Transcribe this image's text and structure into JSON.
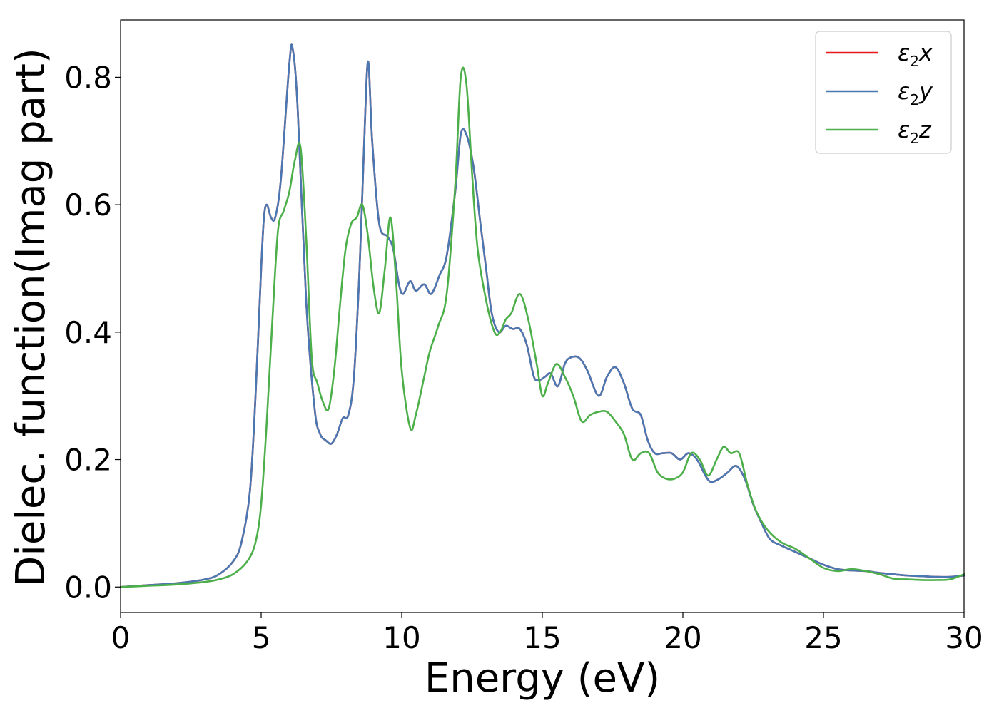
{
  "chart_data": {
    "type": "line",
    "xlabel": "Energy (eV)",
    "ylabel": "Dielec. function(Imag part)",
    "xlim": [
      0,
      30
    ],
    "ylim": [
      -0.04,
      0.89
    ],
    "xticks": [
      0,
      5,
      10,
      15,
      20,
      25,
      30
    ],
    "xtick_labels": [
      "0",
      "5",
      "10",
      "15",
      "20",
      "25",
      "30"
    ],
    "yticks": [
      0.0,
      0.2,
      0.4,
      0.6,
      0.8
    ],
    "ytick_labels": [
      "0.0",
      "0.2",
      "0.4",
      "0.6",
      "0.8"
    ],
    "grid": false,
    "legend_position": "top-right",
    "series": [
      {
        "name": "ε₂x",
        "legend": {
          "symbol": "ε",
          "sub": "2",
          "var": "x"
        },
        "color": "#e41a1c",
        "x": [
          0,
          1,
          2,
          3,
          3.5,
          4,
          4.3,
          4.6,
          4.8,
          5.0,
          5.1,
          5.2,
          5.35,
          5.5,
          5.7,
          6.0,
          6.12,
          6.3,
          6.6,
          6.9,
          7.1,
          7.3,
          7.5,
          7.7,
          7.9,
          8.1,
          8.3,
          8.5,
          8.65,
          8.8,
          8.95,
          9.2,
          9.5,
          9.7,
          9.9,
          10.05,
          10.3,
          10.5,
          10.8,
          11.05,
          11.35,
          11.6,
          11.9,
          12.1,
          12.3,
          12.55,
          12.8,
          13.0,
          13.2,
          13.45,
          13.7,
          13.95,
          14.2,
          14.45,
          14.7,
          14.9,
          15.1,
          15.3,
          15.55,
          15.8,
          16.0,
          16.3,
          16.6,
          17.0,
          17.3,
          17.6,
          17.9,
          18.2,
          18.5,
          18.75,
          19.0,
          19.3,
          19.6,
          19.9,
          20.2,
          20.5,
          20.8,
          21.0,
          21.3,
          21.6,
          21.9,
          22.2,
          22.5,
          22.8,
          23.1,
          23.5,
          24.0,
          24.5,
          25.0,
          25.5,
          26.0,
          26.5,
          27.0,
          27.5,
          28.0,
          28.5,
          29.0,
          29.5,
          30.0
        ],
        "values": [
          0.0,
          0.003,
          0.006,
          0.012,
          0.02,
          0.04,
          0.07,
          0.15,
          0.3,
          0.5,
          0.58,
          0.6,
          0.58,
          0.58,
          0.64,
          0.82,
          0.845,
          0.75,
          0.45,
          0.28,
          0.24,
          0.23,
          0.225,
          0.24,
          0.265,
          0.27,
          0.33,
          0.5,
          0.68,
          0.825,
          0.7,
          0.57,
          0.55,
          0.53,
          0.475,
          0.46,
          0.48,
          0.465,
          0.475,
          0.46,
          0.49,
          0.52,
          0.62,
          0.71,
          0.71,
          0.66,
          0.57,
          0.5,
          0.43,
          0.4,
          0.41,
          0.405,
          0.405,
          0.38,
          0.33,
          0.325,
          0.33,
          0.335,
          0.315,
          0.35,
          0.36,
          0.36,
          0.34,
          0.3,
          0.33,
          0.345,
          0.32,
          0.28,
          0.27,
          0.23,
          0.21,
          0.21,
          0.21,
          0.2,
          0.21,
          0.2,
          0.175,
          0.165,
          0.17,
          0.18,
          0.19,
          0.17,
          0.13,
          0.1,
          0.075,
          0.065,
          0.055,
          0.045,
          0.035,
          0.028,
          0.026,
          0.025,
          0.022,
          0.02,
          0.018,
          0.017,
          0.016,
          0.016,
          0.018
        ]
      },
      {
        "name": "ε₂y",
        "legend": {
          "symbol": "ε",
          "sub": "2",
          "var": "y"
        },
        "color": "#4a78b2",
        "x": [
          0,
          1,
          2,
          3,
          3.5,
          4,
          4.3,
          4.6,
          4.8,
          5.0,
          5.1,
          5.2,
          5.35,
          5.5,
          5.7,
          6.0,
          6.12,
          6.3,
          6.6,
          6.9,
          7.1,
          7.3,
          7.5,
          7.7,
          7.9,
          8.1,
          8.3,
          8.5,
          8.65,
          8.8,
          8.95,
          9.2,
          9.5,
          9.7,
          9.9,
          10.05,
          10.3,
          10.5,
          10.8,
          11.05,
          11.35,
          11.6,
          11.9,
          12.1,
          12.3,
          12.55,
          12.8,
          13.0,
          13.2,
          13.45,
          13.7,
          13.95,
          14.2,
          14.45,
          14.7,
          14.9,
          15.1,
          15.3,
          15.55,
          15.8,
          16.0,
          16.3,
          16.6,
          17.0,
          17.3,
          17.6,
          17.9,
          18.2,
          18.5,
          18.75,
          19.0,
          19.3,
          19.6,
          19.9,
          20.2,
          20.5,
          20.8,
          21.0,
          21.3,
          21.6,
          21.9,
          22.2,
          22.5,
          22.8,
          23.1,
          23.5,
          24.0,
          24.5,
          25.0,
          25.5,
          26.0,
          26.5,
          27.0,
          27.5,
          28.0,
          28.5,
          29.0,
          29.5,
          30.0
        ],
        "values": [
          0.0,
          0.003,
          0.006,
          0.012,
          0.02,
          0.04,
          0.07,
          0.15,
          0.3,
          0.5,
          0.58,
          0.6,
          0.58,
          0.58,
          0.64,
          0.82,
          0.845,
          0.75,
          0.45,
          0.28,
          0.24,
          0.23,
          0.225,
          0.24,
          0.265,
          0.27,
          0.33,
          0.5,
          0.68,
          0.825,
          0.7,
          0.57,
          0.55,
          0.53,
          0.475,
          0.46,
          0.48,
          0.465,
          0.475,
          0.46,
          0.49,
          0.52,
          0.62,
          0.71,
          0.71,
          0.66,
          0.57,
          0.5,
          0.43,
          0.4,
          0.41,
          0.405,
          0.405,
          0.38,
          0.33,
          0.325,
          0.33,
          0.335,
          0.315,
          0.35,
          0.36,
          0.36,
          0.34,
          0.3,
          0.33,
          0.345,
          0.32,
          0.28,
          0.27,
          0.23,
          0.21,
          0.21,
          0.21,
          0.2,
          0.21,
          0.2,
          0.175,
          0.165,
          0.17,
          0.18,
          0.19,
          0.17,
          0.13,
          0.1,
          0.075,
          0.065,
          0.055,
          0.045,
          0.035,
          0.028,
          0.026,
          0.025,
          0.022,
          0.02,
          0.018,
          0.017,
          0.016,
          0.016,
          0.018
        ]
      },
      {
        "name": "ε₂z",
        "legend": {
          "symbol": "ε",
          "sub": "2",
          "var": "z"
        },
        "color": "#4daf4a",
        "x": [
          0,
          1,
          2,
          3,
          3.5,
          4,
          4.5,
          4.8,
          5.0,
          5.2,
          5.4,
          5.6,
          5.8,
          6.0,
          6.2,
          6.4,
          6.6,
          6.8,
          7.0,
          7.2,
          7.4,
          7.6,
          7.8,
          8.0,
          8.2,
          8.4,
          8.6,
          8.8,
          9.0,
          9.2,
          9.4,
          9.6,
          9.8,
          10.0,
          10.3,
          10.5,
          10.8,
          11.0,
          11.3,
          11.6,
          11.9,
          12.1,
          12.3,
          12.5,
          12.7,
          13.0,
          13.3,
          13.5,
          13.7,
          13.9,
          14.2,
          14.5,
          14.8,
          15.0,
          15.2,
          15.5,
          15.8,
          16.1,
          16.4,
          16.7,
          17.0,
          17.3,
          17.6,
          17.9,
          18.2,
          18.5,
          18.8,
          19.1,
          19.4,
          19.7,
          20.0,
          20.3,
          20.6,
          20.9,
          21.2,
          21.45,
          21.7,
          22.0,
          22.3,
          22.6,
          23.0,
          23.5,
          24.0,
          24.5,
          25.0,
          25.5,
          26.0,
          26.5,
          27.0,
          27.5,
          28.0,
          28.5,
          29.0,
          29.5,
          30.0
        ],
        "values": [
          0.0,
          0.002,
          0.004,
          0.008,
          0.012,
          0.02,
          0.04,
          0.07,
          0.13,
          0.26,
          0.42,
          0.56,
          0.59,
          0.62,
          0.67,
          0.69,
          0.55,
          0.36,
          0.32,
          0.29,
          0.28,
          0.34,
          0.44,
          0.53,
          0.57,
          0.58,
          0.6,
          0.55,
          0.47,
          0.43,
          0.5,
          0.58,
          0.48,
          0.34,
          0.25,
          0.27,
          0.33,
          0.37,
          0.41,
          0.46,
          0.63,
          0.8,
          0.79,
          0.65,
          0.53,
          0.45,
          0.4,
          0.4,
          0.42,
          0.43,
          0.46,
          0.42,
          0.35,
          0.3,
          0.32,
          0.35,
          0.33,
          0.3,
          0.26,
          0.27,
          0.275,
          0.275,
          0.26,
          0.24,
          0.2,
          0.21,
          0.21,
          0.18,
          0.17,
          0.17,
          0.18,
          0.21,
          0.2,
          0.175,
          0.2,
          0.22,
          0.21,
          0.21,
          0.16,
          0.12,
          0.09,
          0.07,
          0.06,
          0.045,
          0.03,
          0.025,
          0.028,
          0.025,
          0.02,
          0.013,
          0.012,
          0.011,
          0.011,
          0.012,
          0.02
        ]
      }
    ]
  }
}
